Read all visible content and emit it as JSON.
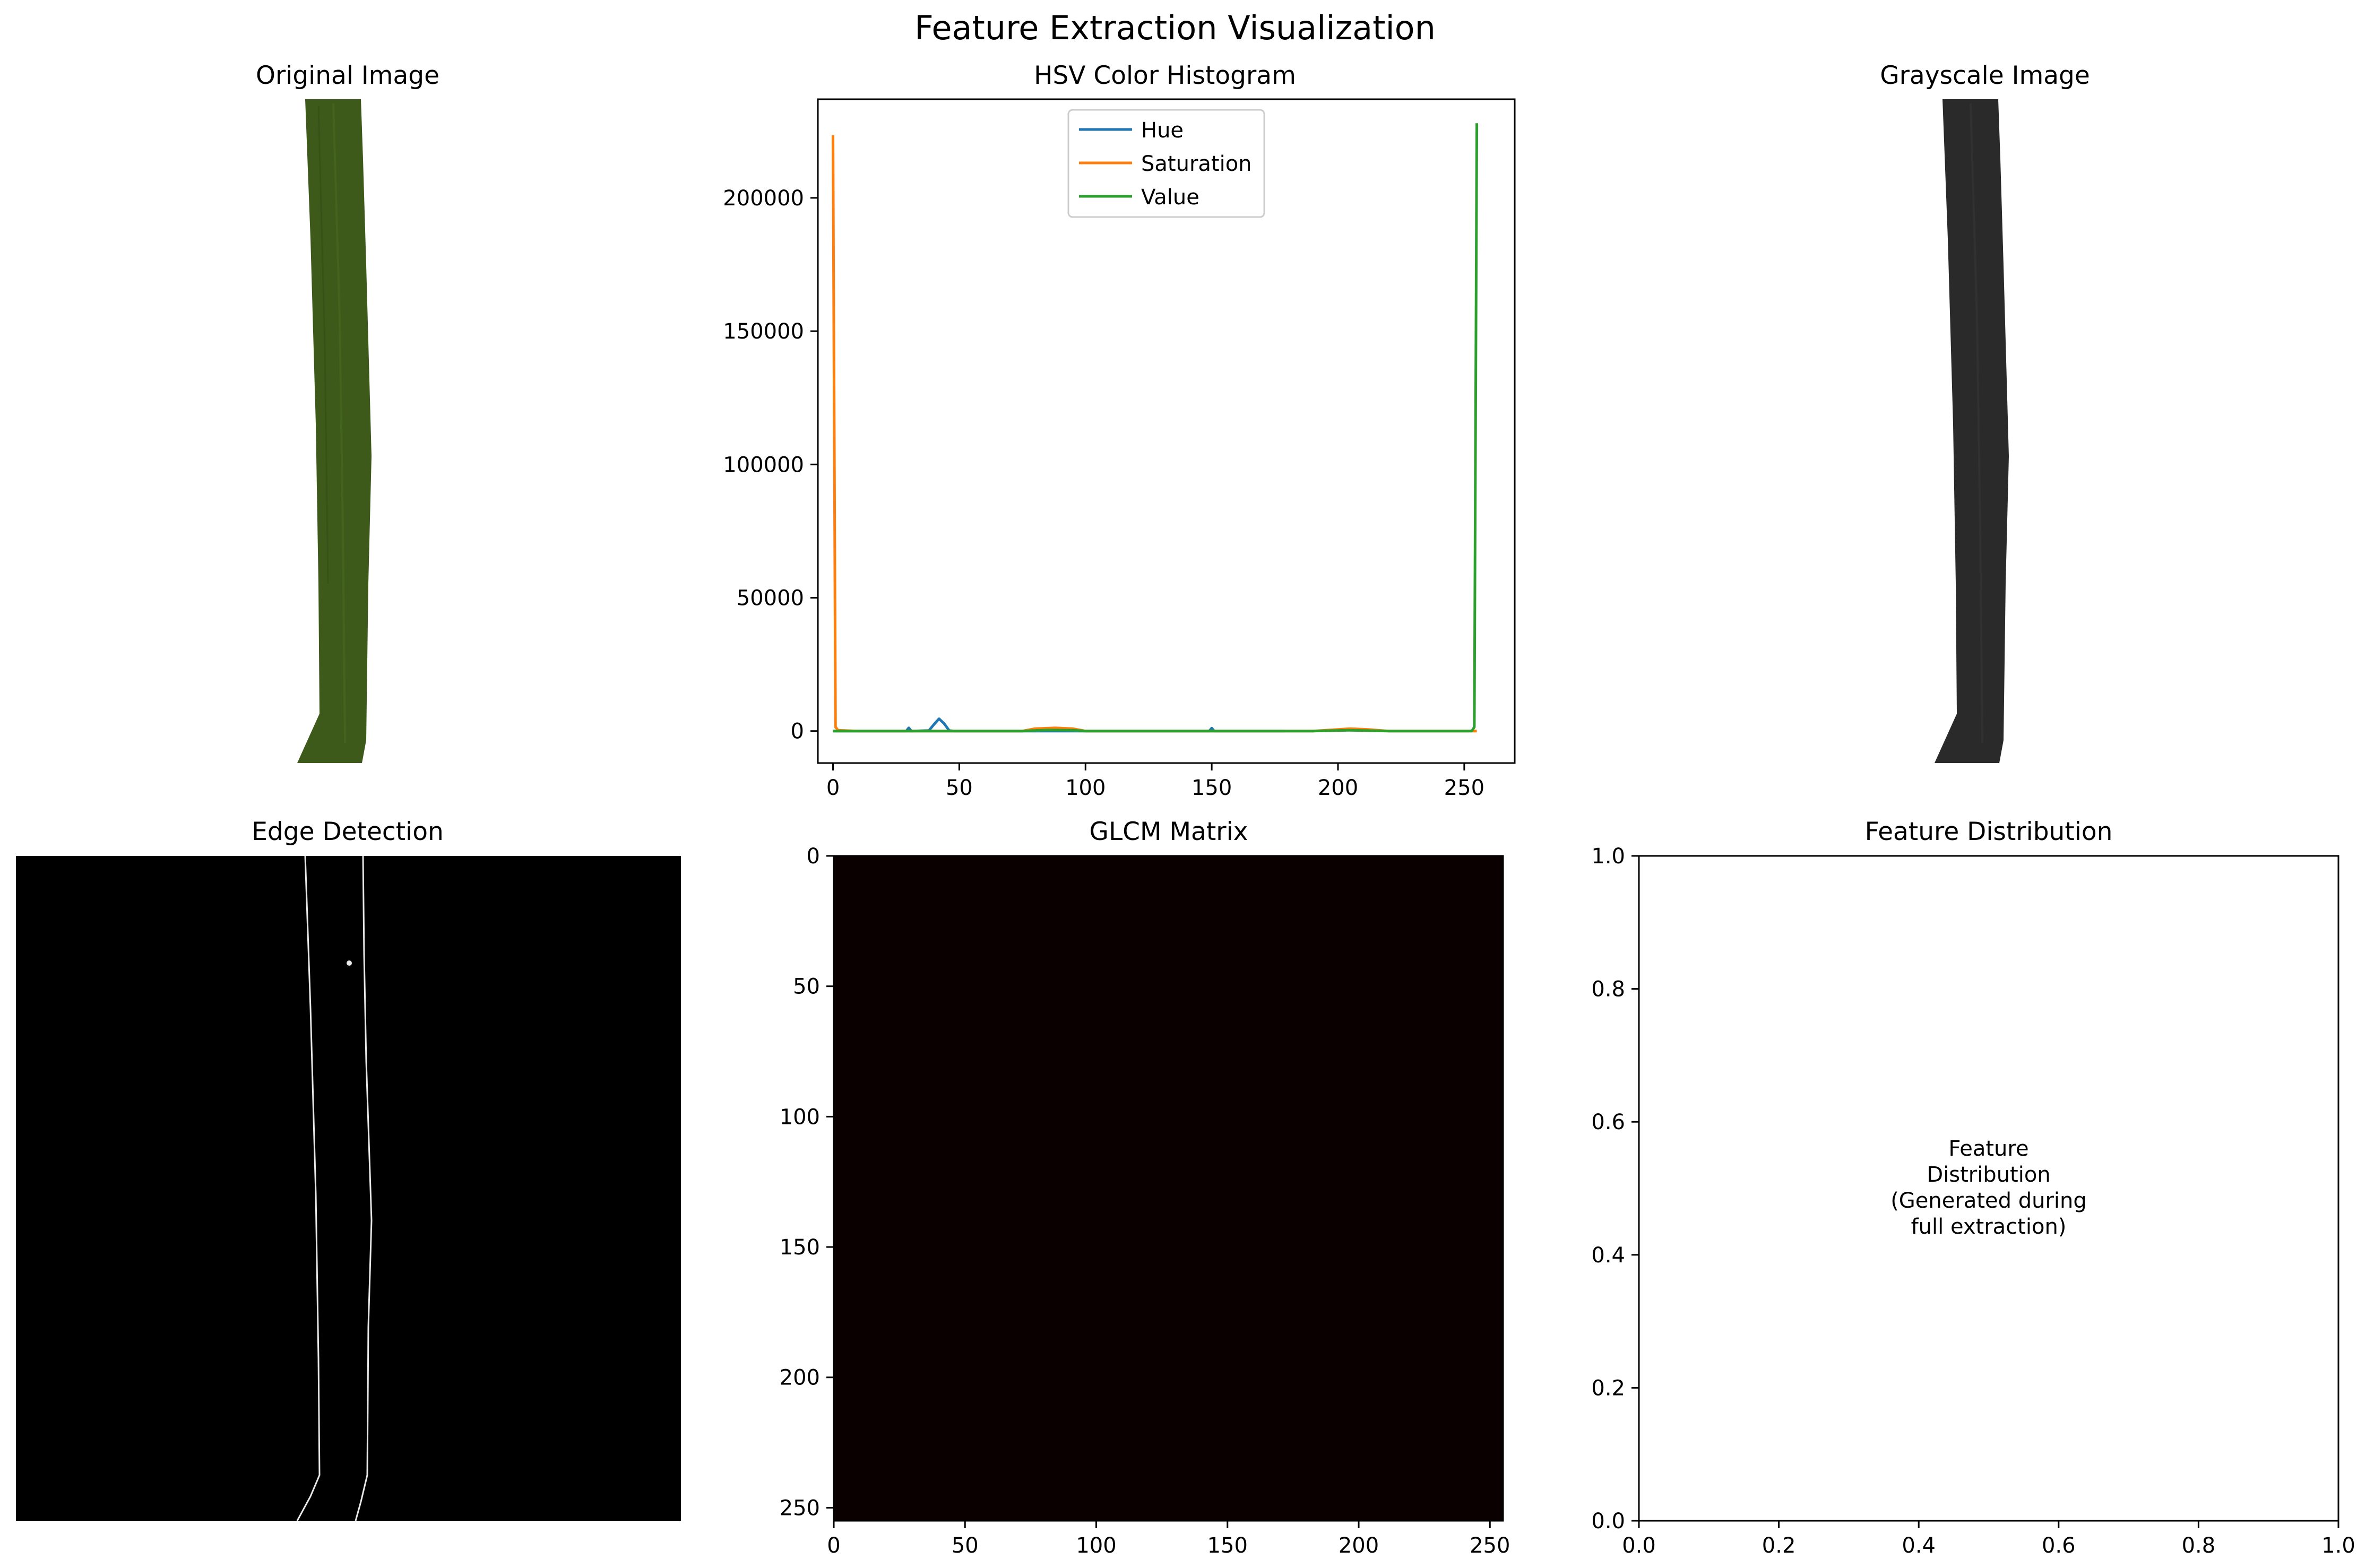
{
  "figure": {
    "title": "Feature Extraction Visualization"
  },
  "panels": {
    "original": {
      "title": "Original Image"
    },
    "grayscale": {
      "title": "Grayscale Image"
    },
    "edges": {
      "title": "Edge Detection"
    },
    "glcm": {
      "title": "GLCM Matrix"
    },
    "distribution": {
      "title": "Feature Distribution",
      "note": [
        "Feature",
        "Distribution",
        "(Generated during",
        "full extraction)"
      ]
    }
  },
  "colors": {
    "hue": "#1f77b4",
    "saturation": "#ff7f0e",
    "value": "#2ca02c",
    "leaf_green": "#3e5a1a",
    "leaf_gray": "#2a2a2a",
    "glcm_bg": "#0b0000"
  },
  "chart_data": [
    {
      "type": "line",
      "title": "HSV Color Histogram",
      "xlim": [
        -6,
        270
      ],
      "ylim": [
        -12000,
        237000
      ],
      "xticks": [
        0,
        50,
        100,
        150,
        200,
        250
      ],
      "yticks": [
        0,
        50000,
        100000,
        150000,
        200000
      ],
      "legend": "top-center",
      "grid": false,
      "series": [
        {
          "name": "Hue",
          "color": "#1f77b4",
          "points": [
            [
              0,
              0
            ],
            [
              29,
              0
            ],
            [
              30,
              1200
            ],
            [
              31,
              0
            ],
            [
              38,
              200
            ],
            [
              40,
              2500
            ],
            [
              42,
              4600
            ],
            [
              44,
              2800
            ],
            [
              46,
              200
            ],
            [
              48,
              0
            ],
            [
              120,
              0
            ],
            [
              149,
              0
            ],
            [
              150,
              1100
            ],
            [
              151,
              0
            ],
            [
              179,
              0
            ]
          ]
        },
        {
          "name": "Saturation",
          "color": "#ff7f0e",
          "points": [
            [
              0,
              223500
            ],
            [
              1,
              1500
            ],
            [
              2,
              300
            ],
            [
              10,
              0
            ],
            [
              75,
              0
            ],
            [
              80,
              900
            ],
            [
              88,
              1200
            ],
            [
              95,
              900
            ],
            [
              100,
              0
            ],
            [
              190,
              0
            ],
            [
              200,
              600
            ],
            [
              205,
              900
            ],
            [
              212,
              600
            ],
            [
              220,
              0
            ],
            [
              255,
              0
            ]
          ]
        },
        {
          "name": "Value",
          "color": "#2ca02c",
          "points": [
            [
              0,
              0
            ],
            [
              75,
              0
            ],
            [
              85,
              400
            ],
            [
              95,
              300
            ],
            [
              100,
              0
            ],
            [
              190,
              0
            ],
            [
              205,
              300
            ],
            [
              220,
              0
            ],
            [
              253,
              0
            ],
            [
              254,
              1500
            ],
            [
              255,
              228000
            ]
          ]
        }
      ]
    },
    {
      "type": "heatmap",
      "title": "GLCM Matrix",
      "xlim": [
        0,
        255
      ],
      "ylim": [
        255,
        0
      ],
      "xticks": [
        0,
        50,
        100,
        150,
        200,
        250
      ],
      "yticks": [
        0,
        50,
        100,
        150,
        200,
        250
      ]
    },
    {
      "type": "scatter",
      "title": "Feature Distribution",
      "xlim": [
        0.0,
        1.0
      ],
      "ylim": [
        0.0,
        1.0
      ],
      "xticks": [
        "0.0",
        "0.2",
        "0.4",
        "0.6",
        "0.8",
        "1.0"
      ],
      "yticks": [
        "0.0",
        "0.2",
        "0.4",
        "0.6",
        "0.8",
        "1.0"
      ]
    }
  ]
}
